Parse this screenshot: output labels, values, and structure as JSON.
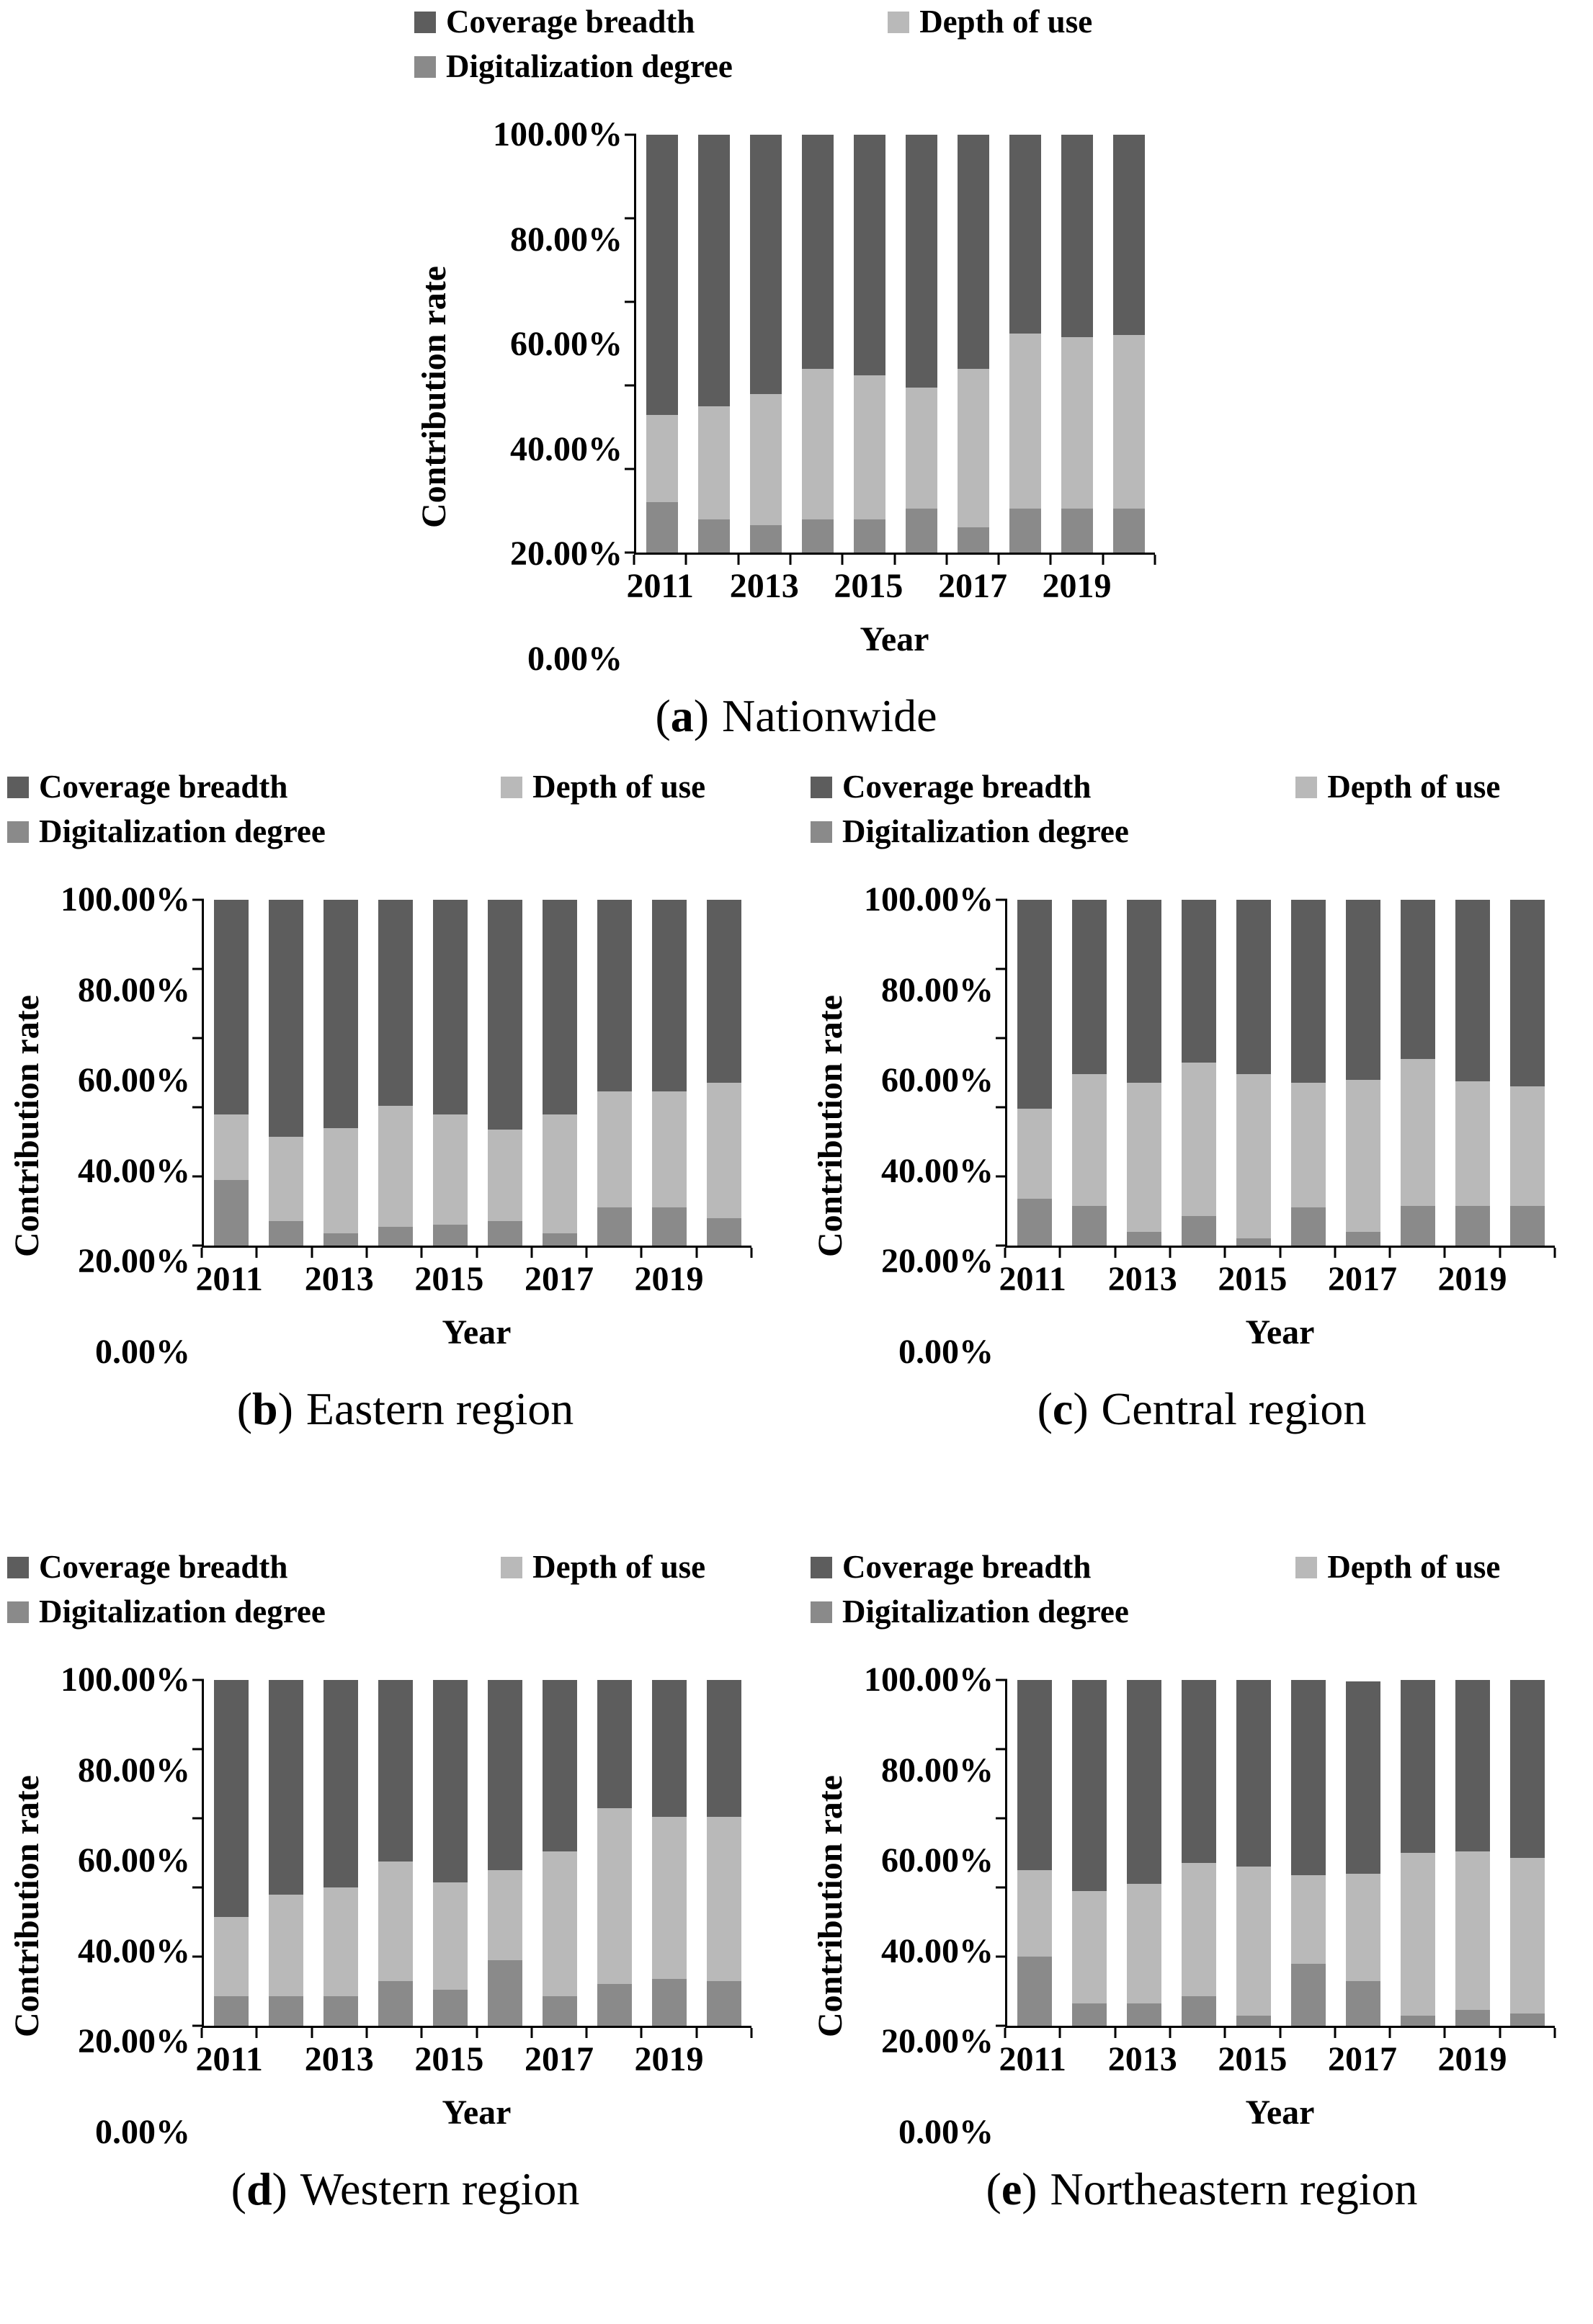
{
  "legend": {
    "items": [
      {
        "label": "Coverage breadth",
        "color": "#5d5d5d"
      },
      {
        "label": "Depth of use",
        "color": "#b9b9b9"
      },
      {
        "label": "Digitalization degree",
        "color": "#8a8a8a"
      }
    ]
  },
  "axis": {
    "y_title": "Contribution rate",
    "x_title": "Year",
    "y_ticks": [
      "100.00%",
      "80.00%",
      "60.00%",
      "40.00%",
      "20.00%",
      "0.00%"
    ],
    "x_labeled_years": [
      "2011",
      "2013",
      "2015",
      "2017",
      "2019"
    ]
  },
  "chart_data": [
    {
      "id": "a",
      "type": "bar",
      "stacked": true,
      "title": "(a) Nationwide",
      "caption": {
        "open": "(",
        "letter": "a",
        "close": ")",
        "text": "Nationwide"
      },
      "ylabel": "Contribution rate",
      "xlabel": "Year",
      "ylim": [
        0,
        100
      ],
      "unit": "%",
      "grid": false,
      "legend_position": "top",
      "categories": [
        "2011",
        "2012",
        "2013",
        "2014",
        "2015",
        "2016",
        "2017",
        "2018",
        "2019",
        "2020"
      ],
      "x_tick_labels": [
        "2011",
        "",
        "2013",
        "",
        "2015",
        "",
        "2017",
        "",
        "2019",
        ""
      ],
      "series": [
        {
          "name": "Digitalization degree",
          "color": "#8a8a8a",
          "values": [
            12,
            8,
            6.5,
            8,
            8,
            10.5,
            6,
            10.5,
            10.5,
            10.5
          ]
        },
        {
          "name": "Depth of use",
          "color": "#b9b9b9",
          "values": [
            21,
            27,
            31.5,
            36,
            34.5,
            29,
            38,
            42,
            41,
            41.5
          ]
        },
        {
          "name": "Coverage breadth",
          "color": "#5d5d5d",
          "values": [
            67,
            65,
            62,
            56,
            57.5,
            60.5,
            56,
            47.5,
            48.5,
            48
          ]
        }
      ]
    },
    {
      "id": "b",
      "type": "bar",
      "stacked": true,
      "title": "(b) Eastern region",
      "caption": {
        "open": "(",
        "letter": "b",
        "close": ")",
        "text": "Eastern region"
      },
      "ylabel": "Contribution rate",
      "xlabel": "Year",
      "ylim": [
        0,
        100
      ],
      "unit": "%",
      "grid": false,
      "legend_position": "top",
      "categories": [
        "2011",
        "2012",
        "2013",
        "2014",
        "2015",
        "2016",
        "2017",
        "2018",
        "2019",
        "2020"
      ],
      "x_tick_labels": [
        "2011",
        "",
        "2013",
        "",
        "2015",
        "",
        "2017",
        "",
        "2019",
        ""
      ],
      "series": [
        {
          "name": "Digitalization degree",
          "color": "#8a8a8a",
          "values": [
            19,
            7,
            3.5,
            5.5,
            6,
            7,
            3.5,
            11,
            11,
            8
          ]
        },
        {
          "name": "Depth of use",
          "color": "#b9b9b9",
          "values": [
            19,
            24.5,
            30.5,
            35,
            32,
            26.5,
            34.5,
            33.5,
            33.5,
            39
          ]
        },
        {
          "name": "Coverage breadth",
          "color": "#5d5d5d",
          "values": [
            62,
            68.5,
            66,
            59.5,
            62,
            66.5,
            62,
            55.5,
            55.5,
            53
          ]
        }
      ]
    },
    {
      "id": "c",
      "type": "bar",
      "stacked": true,
      "title": "(c) Central region",
      "caption": {
        "open": "(",
        "letter": "c",
        "close": ")",
        "text": "Central region"
      },
      "ylabel": "Contribution rate",
      "xlabel": "Year",
      "ylim": [
        0,
        100
      ],
      "unit": "%",
      "grid": false,
      "legend_position": "top",
      "categories": [
        "2011",
        "2012",
        "2013",
        "2014",
        "2015",
        "2016",
        "2017",
        "2018",
        "2019",
        "2020"
      ],
      "x_tick_labels": [
        "2011",
        "",
        "2013",
        "",
        "2015",
        "",
        "2017",
        "",
        "2019",
        ""
      ],
      "series": [
        {
          "name": "Digitalization degree",
          "color": "#8a8a8a",
          "values": [
            13.5,
            11.5,
            4,
            8.5,
            2,
            11,
            4,
            11.5,
            11.5,
            11.5
          ]
        },
        {
          "name": "Depth of use",
          "color": "#b9b9b9",
          "values": [
            26,
            38,
            43,
            44.5,
            47.5,
            36,
            44,
            42.5,
            36,
            34.5
          ]
        },
        {
          "name": "Coverage breadth",
          "color": "#5d5d5d",
          "values": [
            60.5,
            50.5,
            53,
            47,
            50.5,
            53,
            52,
            46,
            52.5,
            54
          ]
        }
      ]
    },
    {
      "id": "d",
      "type": "bar",
      "stacked": true,
      "title": "(d) Western region",
      "caption": {
        "open": "(",
        "letter": "d",
        "close": ")",
        "text": "Western region"
      },
      "ylabel": "Contribution rate",
      "xlabel": "Year",
      "ylim": [
        0,
        100
      ],
      "unit": "%",
      "grid": false,
      "legend_position": "top",
      "categories": [
        "2011",
        "2012",
        "2013",
        "2014",
        "2015",
        "2016",
        "2017",
        "2018",
        "2019",
        "2020"
      ],
      "x_tick_labels": [
        "2011",
        "",
        "2013",
        "",
        "2015",
        "",
        "2017",
        "",
        "2019",
        ""
      ],
      "series": [
        {
          "name": "Digitalization degree",
          "color": "#8a8a8a",
          "values": [
            8.5,
            8.5,
            8.5,
            13,
            10.5,
            19,
            8.5,
            12,
            13.5,
            13
          ]
        },
        {
          "name": "Depth of use",
          "color": "#b9b9b9",
          "values": [
            23,
            29.5,
            31.5,
            34.5,
            31,
            26,
            42,
            51,
            47,
            47.5
          ]
        },
        {
          "name": "Coverage breadth",
          "color": "#5d5d5d",
          "values": [
            68.5,
            62,
            60,
            52.5,
            58.5,
            55,
            49.5,
            37,
            39.5,
            39.5
          ]
        }
      ]
    },
    {
      "id": "e",
      "type": "bar",
      "stacked": true,
      "title": "(e) Northeastern region",
      "caption": {
        "open": "(",
        "letter": "e",
        "close": ")",
        "text": "Northeastern region"
      },
      "ylabel": "Contribution rate",
      "xlabel": "Year",
      "ylim": [
        0,
        100
      ],
      "unit": "%",
      "grid": false,
      "legend_position": "top",
      "categories": [
        "2011",
        "2012",
        "2013",
        "2014",
        "2015",
        "2016",
        "2017",
        "2018",
        "2019",
        "2020"
      ],
      "x_tick_labels": [
        "2011",
        "",
        "2013",
        "",
        "2015",
        "",
        "2017",
        "",
        "2019",
        ""
      ],
      "series": [
        {
          "name": "Digitalization degree",
          "color": "#8a8a8a",
          "values": [
            20,
            6.5,
            6.5,
            8.5,
            3,
            18,
            13,
            3,
            4.5,
            3.5
          ]
        },
        {
          "name": "Depth of use",
          "color": "#b9b9b9",
          "values": [
            25,
            32.5,
            34.5,
            38.5,
            43,
            25.5,
            31,
            47,
            46,
            45
          ]
        },
        {
          "name": "Coverage breadth",
          "color": "#5d5d5d",
          "values": [
            55,
            61,
            59,
            53,
            54,
            56.5,
            55.5,
            50,
            49.5,
            51.5
          ]
        }
      ]
    }
  ]
}
